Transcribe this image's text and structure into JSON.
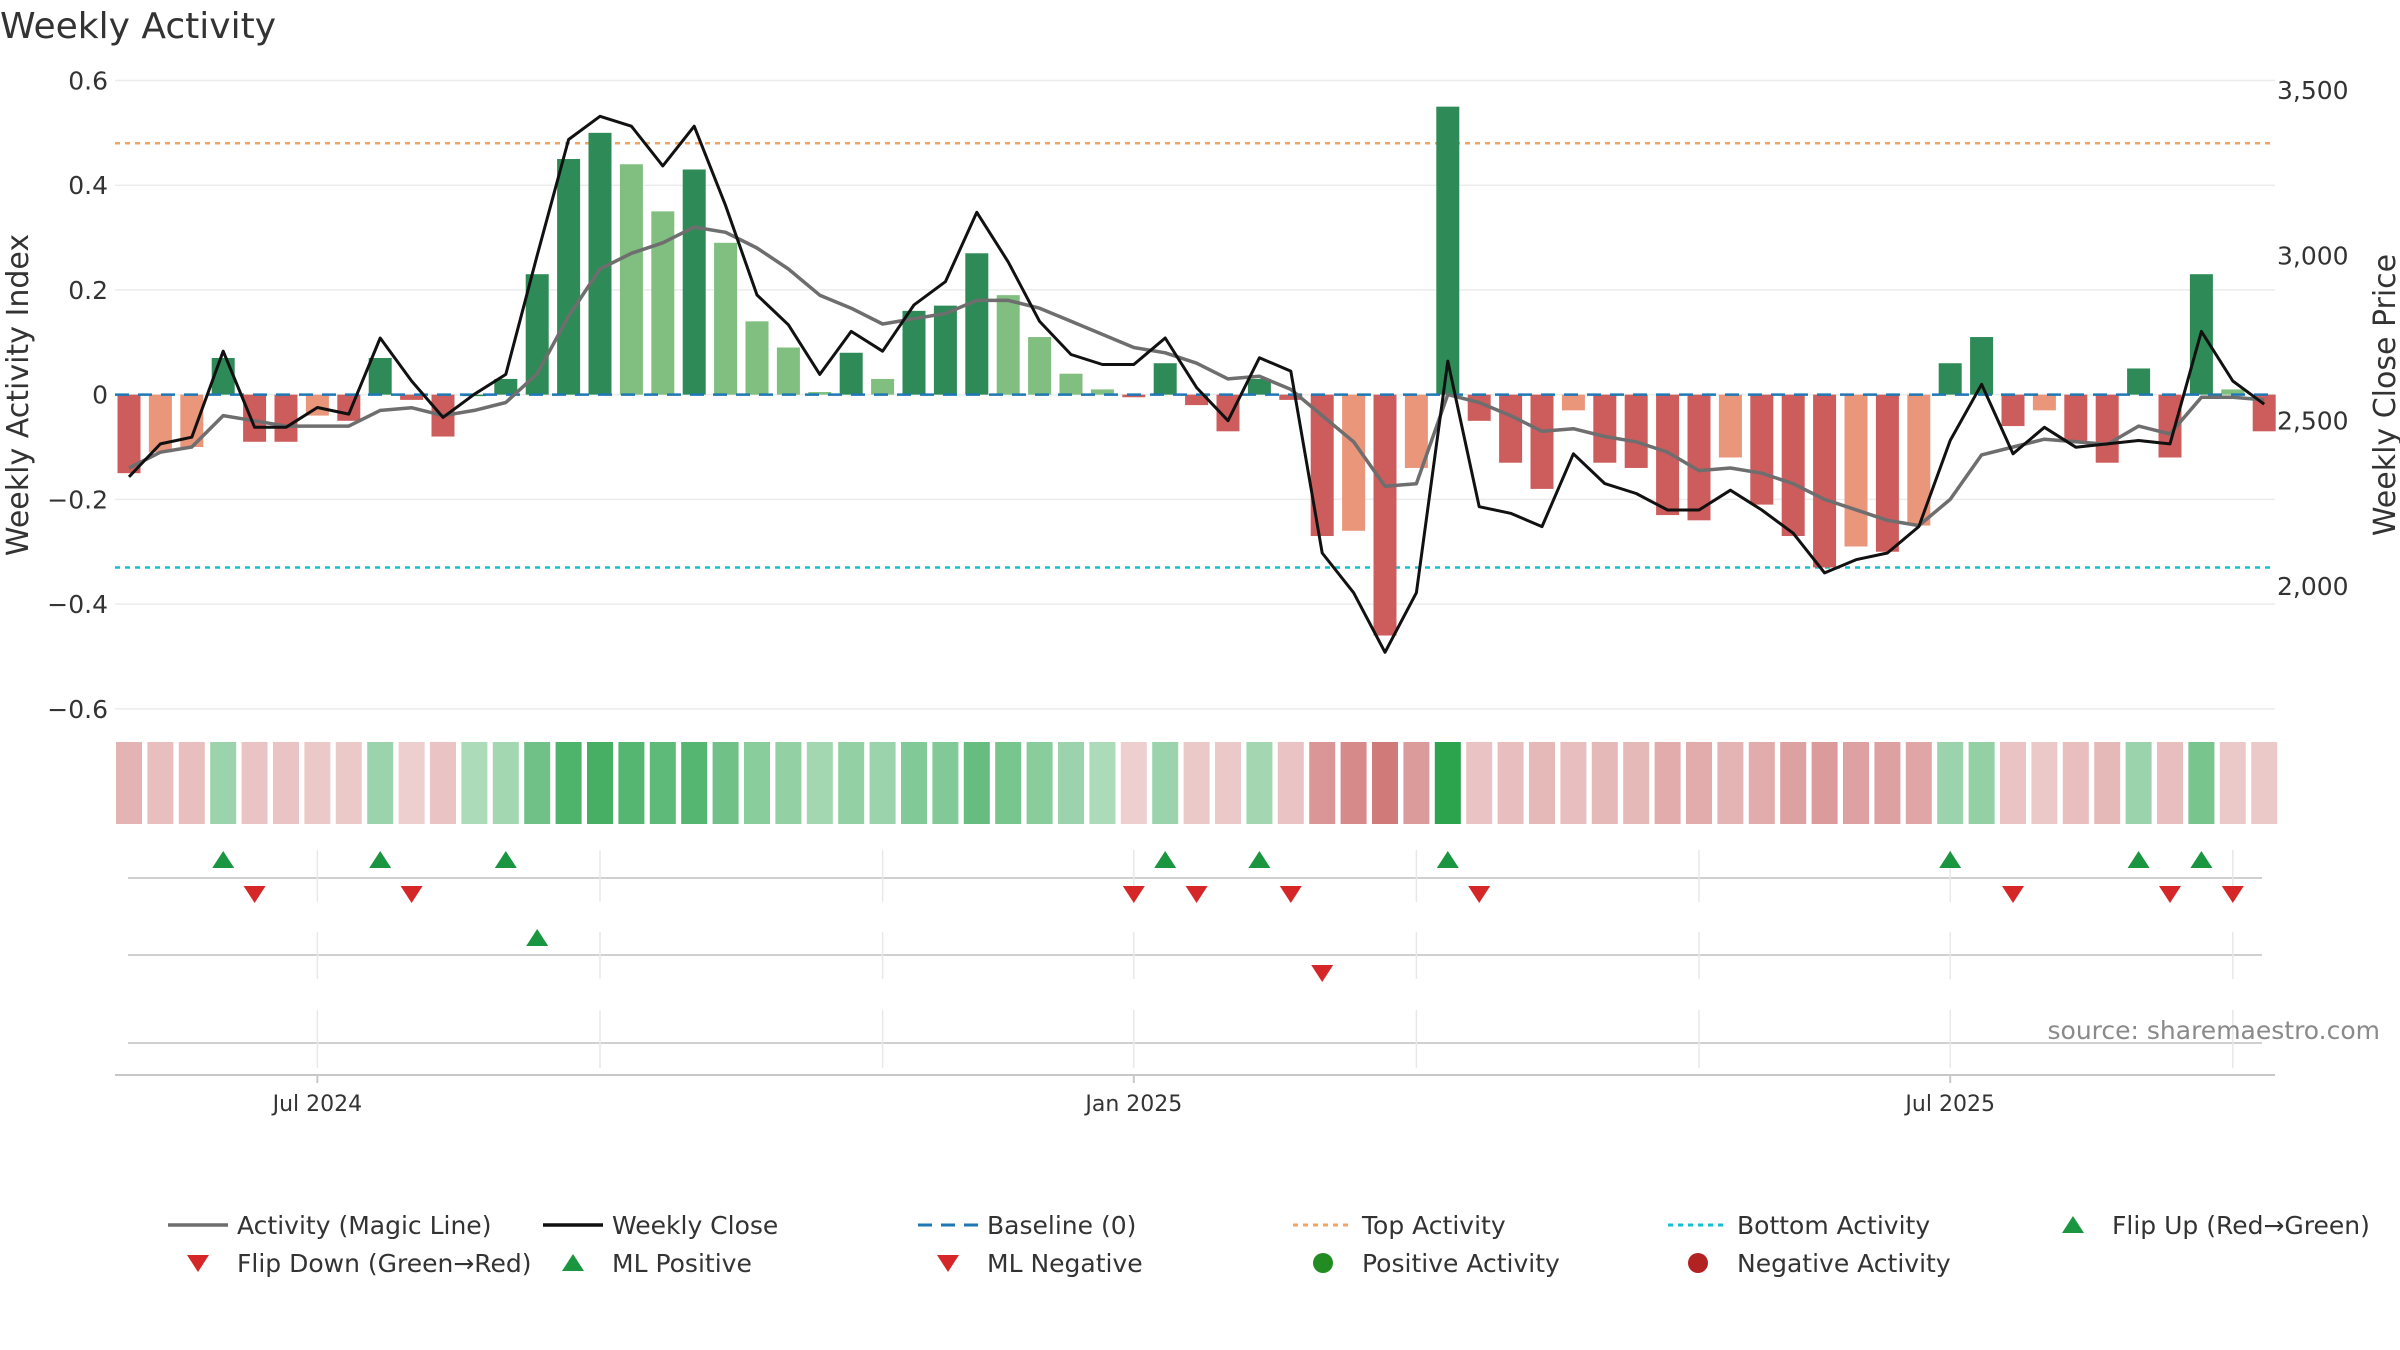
{
  "chart_data": {
    "type": "bar",
    "title": "Weekly Activity",
    "ylabel": "Weekly Activity Index",
    "ylabel_right": "Weekly Close Price",
    "ylim": [
      -0.65,
      0.62
    ],
    "ylim_right": [
      1550,
      3560
    ],
    "yticks": [
      {
        "value": 0.6,
        "label": "0.6"
      },
      {
        "value": 0.4,
        "label": "0.4"
      },
      {
        "value": 0.2,
        "label": "0.2"
      },
      {
        "value": 0,
        "label": "0"
      },
      {
        "value": -0.2,
        "label": "−0.2"
      },
      {
        "value": -0.4,
        "label": "−0.4"
      },
      {
        "value": -0.6,
        "label": "−0.6"
      }
    ],
    "yticks_right": [
      {
        "value": 3500,
        "label": "3,500"
      },
      {
        "value": 3000,
        "label": "3,000"
      },
      {
        "value": 2500,
        "label": "2,500"
      },
      {
        "value": 2000,
        "label": "2,000"
      }
    ],
    "xticks": [
      {
        "week": 6,
        "label": "Jul 2024"
      },
      {
        "week": 32,
        "label": "Jan 2025"
      },
      {
        "week": 58,
        "label": "Jul 2025"
      }
    ],
    "vgrid_weeks": [
      6,
      15,
      24,
      32,
      41,
      50,
      58,
      67
    ],
    "week_count": 69,
    "activity": [
      -0.15,
      -0.11,
      -0.1,
      0.07,
      -0.09,
      -0.09,
      -0.04,
      -0.05,
      0.07,
      -0.01,
      -0.08,
      0,
      0.03,
      0.23,
      0.45,
      0.5,
      0.44,
      0.35,
      0.43,
      0.29,
      0.14,
      0.09,
      0.005,
      0.08,
      0.03,
      0.16,
      0.17,
      0.27,
      0.19,
      0.11,
      0.04,
      0.01,
      -0.005,
      0.06,
      -0.02,
      -0.07,
      0.03,
      -0.01,
      -0.27,
      -0.26,
      -0.46,
      -0.14,
      0.55,
      -0.05,
      -0.13,
      -0.18,
      -0.03,
      -0.13,
      -0.14,
      -0.23,
      -0.24,
      -0.12,
      -0.21,
      -0.27,
      -0.33,
      -0.29,
      -0.3,
      -0.25,
      0.06,
      0.11,
      -0.06,
      -0.03,
      -0.09,
      -0.13,
      0.05,
      -0.12,
      0.23,
      0.01,
      -0.07
    ],
    "magic_line": [
      -0.14,
      -0.11,
      -0.1,
      -0.04,
      -0.05,
      -0.06,
      -0.06,
      -0.06,
      -0.03,
      -0.025,
      -0.04,
      -0.03,
      -0.015,
      0.04,
      0.15,
      0.24,
      0.27,
      0.29,
      0.32,
      0.31,
      0.28,
      0.24,
      0.19,
      0.165,
      0.135,
      0.145,
      0.155,
      0.18,
      0.18,
      0.165,
      0.14,
      0.115,
      0.09,
      0.08,
      0.06,
      0.03,
      0.035,
      0.01,
      -0.04,
      -0.09,
      -0.175,
      -0.17,
      0,
      -0.015,
      -0.04,
      -0.07,
      -0.065,
      -0.08,
      -0.09,
      -0.11,
      -0.145,
      -0.14,
      -0.15,
      -0.17,
      -0.2,
      -0.22,
      -0.24,
      -0.25,
      -0.2,
      -0.115,
      -0.1,
      -0.085,
      -0.09,
      -0.095,
      -0.06,
      -0.075,
      -0.005,
      -0.005,
      -0.01
    ],
    "weekly_close": [
      2330,
      2430,
      2450,
      2710,
      2480,
      2480,
      2540,
      2520,
      2750,
      2620,
      2510,
      2580,
      2640,
      3000,
      3350,
      3420,
      3390,
      3270,
      3390,
      3150,
      2880,
      2790,
      2640,
      2770,
      2710,
      2850,
      2920,
      3130,
      2980,
      2800,
      2700,
      2670,
      2670,
      2750,
      2600,
      2500,
      2690,
      2650,
      2100,
      1980,
      1800,
      1980,
      2680,
      2240,
      2220,
      2180,
      2400,
      2310,
      2280,
      2230,
      2230,
      2290,
      2230,
      2160,
      2040,
      2080,
      2100,
      2180,
      2440,
      2610,
      2400,
      2480,
      2420,
      2430,
      2440,
      2430,
      2770,
      2620,
      2550
    ],
    "heat_strip": [
      -0.4,
      -0.3,
      -0.3,
      0.3,
      -0.25,
      -0.25,
      -0.2,
      -0.2,
      0.3,
      -0.15,
      -0.25,
      0.2,
      0.25,
      0.55,
      0.75,
      0.8,
      0.7,
      0.65,
      0.7,
      0.55,
      0.4,
      0.35,
      0.25,
      0.35,
      0.3,
      0.45,
      0.45,
      0.6,
      0.5,
      0.4,
      0.3,
      0.2,
      -0.15,
      0.3,
      -0.2,
      -0.2,
      0.25,
      -0.25,
      -0.65,
      -0.75,
      -0.9,
      -0.6,
      0.95,
      -0.25,
      -0.3,
      -0.35,
      -0.3,
      -0.35,
      -0.35,
      -0.45,
      -0.45,
      -0.4,
      -0.45,
      -0.55,
      -0.6,
      -0.55,
      -0.55,
      -0.5,
      0.3,
      0.35,
      -0.25,
      -0.2,
      -0.3,
      -0.35,
      0.3,
      -0.3,
      0.5,
      -0.2,
      -0.2
    ],
    "flip_up_weeks": [
      3,
      8,
      12,
      33,
      36,
      42,
      58,
      64,
      66
    ],
    "flip_down_weeks": [
      4,
      9,
      32,
      34,
      37,
      43,
      60,
      65,
      67
    ],
    "ml_positive_weeks": [
      13
    ],
    "ml_negative_weeks": [
      38
    ],
    "top_activity": 0.48,
    "bottom_activity": -0.33,
    "legend": [
      "Activity (Magic Line)",
      "Weekly Close",
      "Baseline (0)",
      "Top Activity",
      "Bottom Activity",
      "Flip Up (Red→Green)",
      "Flip Down (Green→Red)",
      "ML Positive",
      "ML Negative",
      "Positive Activity",
      "Negative Activity"
    ],
    "source": "source: sharemaestro.com"
  },
  "colors": {
    "pos_strong": "#2e8b57",
    "pos_light": "#80bf7f",
    "neg_strong": "#cd5c5c",
    "neg_light": "#e9967a",
    "magic_line": "#6e6e6e",
    "close_line": "#111111",
    "baseline": "#1f77b4",
    "top_line": "#f4a460",
    "bottom_line": "#17becf",
    "flip_up": "#1a9641",
    "flip_down": "#d62728",
    "positive_dot": "#228b22",
    "negative_dot": "#b22222"
  }
}
